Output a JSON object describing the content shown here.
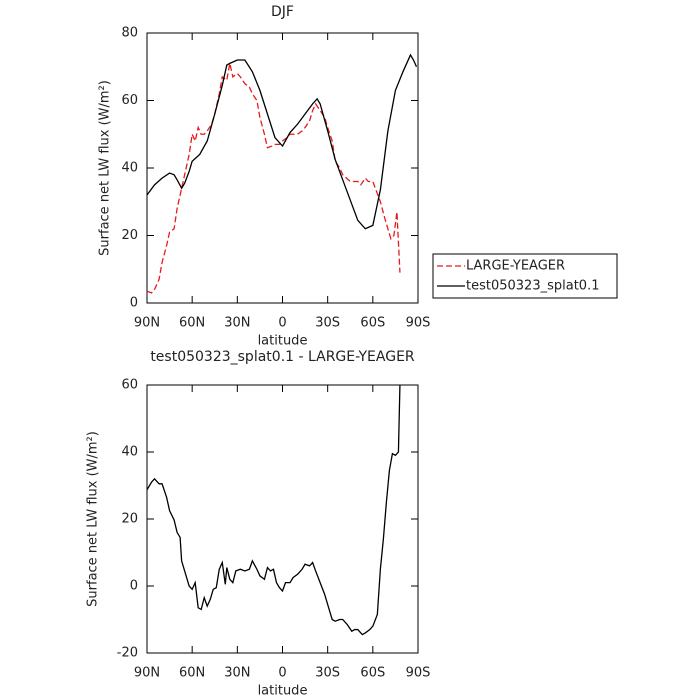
{
  "chart_data": [
    {
      "type": "line",
      "title": "DJF",
      "xlabel": "latitude",
      "ylabel": "Surface net LW flux (W/m²)",
      "xlim": [
        90,
        -90
      ],
      "ylim": [
        0,
        80
      ],
      "xticks": [
        {
          "value": 90,
          "label": "90N"
        },
        {
          "value": 60,
          "label": "60N"
        },
        {
          "value": 30,
          "label": "30N"
        },
        0,
        {
          "value": -30,
          "label": "30S"
        },
        {
          "value": -60,
          "label": "60S"
        },
        {
          "value": -90,
          "label": "90S"
        }
      ],
      "yticks": [
        0,
        20,
        40,
        60,
        80
      ],
      "legend": "right",
      "series": [
        {
          "name": "LARGE-YEAGER",
          "color": "#e8191c",
          "dash": true,
          "x": [
            90,
            87,
            85,
            82,
            80,
            77,
            75,
            72,
            70,
            67,
            65,
            62,
            60,
            58,
            56,
            54,
            52,
            50,
            47,
            45,
            42,
            40,
            37,
            35,
            33,
            30,
            28,
            25,
            22,
            20,
            17,
            15,
            12,
            10,
            7,
            5,
            2,
            0,
            -3,
            -5,
            -8,
            -10,
            -13,
            -15,
            -18,
            -20,
            -22,
            -25,
            -28,
            -30,
            -33,
            -35,
            -38,
            -40,
            -45,
            -50,
            -52,
            -55,
            -57,
            -60,
            -65,
            -68,
            -72,
            -74,
            -76,
            -78
          ],
          "values": [
            3.5,
            3,
            4,
            7,
            12,
            17,
            21,
            22,
            28,
            34,
            38,
            44,
            50,
            48,
            52,
            50,
            50,
            51,
            53,
            56,
            62,
            67,
            66,
            71,
            67,
            68,
            67,
            65,
            64,
            62,
            60,
            55,
            50,
            46,
            46.5,
            47,
            47,
            48,
            49,
            50,
            50,
            50,
            51,
            52,
            54,
            57,
            59,
            57,
            55,
            52,
            48,
            42,
            40,
            38,
            36,
            36,
            35,
            37,
            36,
            36,
            30,
            25,
            19,
            20,
            27,
            9
          ]
        },
        {
          "name": "test050323_splat0.1",
          "color": "#000000",
          "dash": false,
          "x": [
            90,
            85,
            80,
            75,
            72,
            70,
            67,
            65,
            62,
            60,
            55,
            50,
            45,
            40,
            37,
            35,
            30,
            25,
            20,
            15,
            10,
            5,
            0,
            -5,
            -10,
            -15,
            -20,
            -23,
            -25,
            -30,
            -35,
            -40,
            -45,
            -50,
            -55,
            -60,
            -65,
            -70,
            -75,
            -80,
            -85,
            -87,
            -89
          ],
          "values": [
            32,
            35,
            37,
            38.5,
            38,
            36.5,
            34,
            35.5,
            39,
            42,
            44,
            48,
            56,
            64.5,
            70.5,
            71,
            72,
            72,
            68.5,
            63,
            56,
            49,
            46.5,
            50.5,
            53,
            56,
            59,
            60.5,
            59,
            51,
            42.5,
            36.5,
            30.5,
            24.5,
            22,
            23,
            33.5,
            51,
            63,
            68.5,
            73.5,
            72,
            70
          ]
        }
      ]
    },
    {
      "type": "line",
      "title": "test050323_splat0.1 - LARGE-YEAGER",
      "xlabel": "latitude",
      "ylabel": "Surface net LW flux (W/m²)",
      "xlim": [
        90,
        -90
      ],
      "ylim": [
        -20,
        60
      ],
      "xticks": [
        {
          "value": 90,
          "label": "90N"
        },
        {
          "value": 60,
          "label": "60N"
        },
        {
          "value": 30,
          "label": "30N"
        },
        0,
        {
          "value": -30,
          "label": "30S"
        },
        {
          "value": -60,
          "label": "60S"
        },
        {
          "value": -90,
          "label": "90S"
        }
      ],
      "yticks": [
        -20,
        0,
        20,
        40,
        60
      ],
      "series": [
        {
          "color": "#000000",
          "dash": false,
          "x": [
            90,
            87,
            85,
            82,
            80,
            77,
            75,
            72,
            70,
            68,
            67,
            65,
            62,
            60,
            58,
            56,
            54,
            52,
            50,
            48,
            46,
            44,
            42,
            40,
            38,
            37,
            35,
            33,
            31,
            28,
            25,
            22,
            20,
            17,
            15,
            12,
            10,
            8,
            6,
            4,
            2,
            0,
            -2,
            -5,
            -7,
            -10,
            -13,
            -15,
            -18,
            -20,
            -22,
            -25,
            -28,
            -30,
            -33,
            -35,
            -38,
            -40,
            -43,
            -46,
            -48,
            -50,
            -53,
            -55,
            -58,
            -60,
            -63,
            -65,
            -67,
            -69,
            -71,
            -73,
            -75,
            -77,
            -78
          ],
          "values": [
            28.7,
            31,
            32,
            30.5,
            30.5,
            26.5,
            22.5,
            19.7,
            16,
            14.5,
            7.5,
            4.5,
            0,
            -1,
            1,
            -6.5,
            -7,
            -3.5,
            -6,
            -4,
            -1,
            -0.5,
            5,
            7,
            0.5,
            5.5,
            2,
            1,
            4.5,
            5,
            4.5,
            5,
            7.5,
            5,
            3,
            2,
            5.5,
            4.5,
            5,
            1,
            -0.5,
            -1.5,
            1,
            1,
            2.5,
            3.5,
            5,
            6.5,
            6,
            7,
            4.5,
            1,
            -2.5,
            -5.5,
            -10,
            -10.5,
            -10,
            -10,
            -11.5,
            -13.5,
            -13,
            -13,
            -14.5,
            -14,
            -13,
            -12,
            -8.5,
            5,
            14,
            25,
            34.5,
            39.5,
            39,
            40,
            60
          ]
        }
      ]
    }
  ]
}
